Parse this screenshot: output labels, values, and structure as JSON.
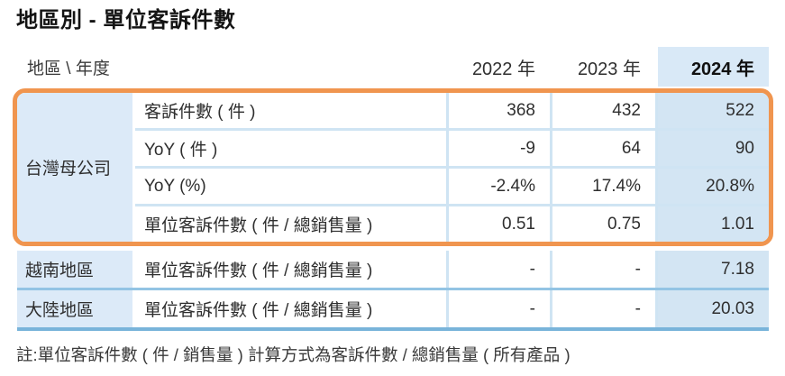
{
  "title": "地區別 - 單位客訴件數",
  "note": "註:單位客訴件數 ( 件 / 銷售量 ) 計算方式為客訴件數 / 總銷售量 ( 所有產品 )",
  "table": {
    "corner_label": "地區 \\ 年度",
    "years": [
      "2022 年",
      "2023 年",
      "2024 年"
    ],
    "taiwan": {
      "region": "台灣母公司",
      "rows": [
        {
          "metric": "客訴件數 ( 件 )",
          "values": [
            "368",
            "432",
            "522"
          ]
        },
        {
          "metric": "YoY ( 件 )",
          "values": [
            "-9",
            "64",
            "90"
          ]
        },
        {
          "metric": "YoY (%)",
          "values": [
            "-2.4%",
            "17.4%",
            "20.8%"
          ]
        },
        {
          "metric": "單位客訴件數 ( 件 / 總銷售量 )",
          "values": [
            "0.51",
            "0.75",
            "1.01"
          ]
        }
      ]
    },
    "other_regions": [
      {
        "region": "越南地區",
        "metric": "單位客訴件數 ( 件 / 總銷售量 )",
        "values": [
          "-",
          "-",
          "7.18"
        ]
      },
      {
        "region": "大陸地區",
        "metric": "單位客訴件數 ( 件 / 總銷售量 )",
        "values": [
          "-",
          "-",
          "20.03"
        ]
      }
    ]
  },
  "colors": {
    "highlight_orange": "#F0954F",
    "region_cell_blue": "#DCEAF8",
    "current_year_column_blue": "#D3E5F3",
    "separator_light_blue": "#CFE4F3",
    "row_divider_blue": "#93C4E4",
    "table_bottom_border_blue": "#79B4DA"
  }
}
